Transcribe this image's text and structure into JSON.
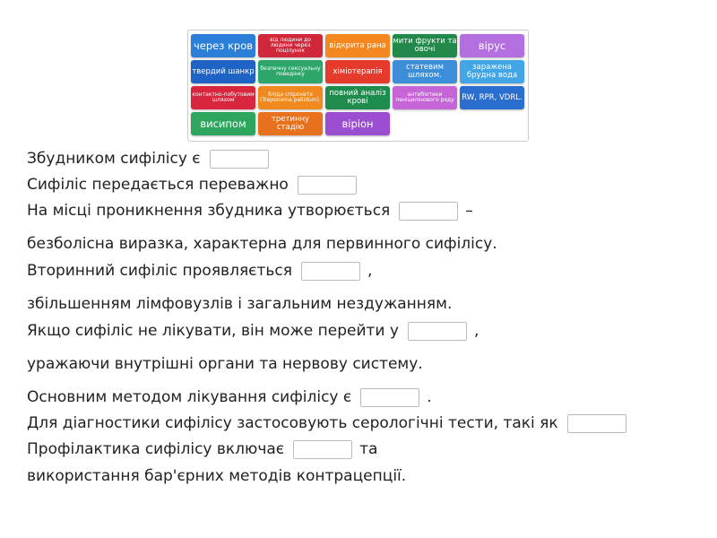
{
  "tiles": [
    {
      "label": "через кров",
      "color": "#2b7fd8",
      "size": "l"
    },
    {
      "label": "від людини до людини через поцілунок",
      "color": "#d0283a",
      "size": "s"
    },
    {
      "label": "відкрита рана",
      "color": "#f5871f",
      "size": "m"
    },
    {
      "label": "мити фрукти та овочі",
      "color": "#21894a",
      "size": "m"
    },
    {
      "label": "вірус",
      "color": "#b36ee0",
      "size": "l"
    },
    {
      "label": "твердий шанкр",
      "color": "#1f63c5",
      "size": "m"
    },
    {
      "label": "безпечну сексуальну поведінку",
      "color": "#2ea56b",
      "size": "s"
    },
    {
      "label": "хіміотерапія",
      "color": "#e53b2c",
      "size": "m"
    },
    {
      "label": "статевим шляхом.",
      "color": "#3d8ed8",
      "size": "m"
    },
    {
      "label": "заражена брудна вода",
      "color": "#42a5e5",
      "size": "m"
    },
    {
      "label": "контактно-побутовим шляхом",
      "color": "#d7263d",
      "size": "s"
    },
    {
      "label": "бліда спірохета (Treponema pallidum).",
      "color": "#f08a1e",
      "size": "s"
    },
    {
      "label": "повний аналіз крові",
      "color": "#1e8c4d",
      "size": "m"
    },
    {
      "label": "антибіотики пеніцилінового ряду",
      "color": "#c665d8",
      "size": "s"
    },
    {
      "label": "RW, RPR, VDRL.",
      "color": "#2a6fcf",
      "size": "m"
    },
    {
      "label": "висипом",
      "color": "#2fa65e",
      "size": "l"
    },
    {
      "label": "третинну стадію",
      "color": "#e8711e",
      "size": "m"
    },
    {
      "label": "віріон",
      "color": "#9b4fd0",
      "size": "l"
    }
  ],
  "lines": [
    {
      "text": "Збудником сифілісу є",
      "blank": true
    },
    {
      "text": "Сифіліс передається переважно",
      "blank": true
    },
    {
      "text": "На місці проникнення збудника утворюється",
      "blank": true,
      "after": "–"
    },
    {
      "text": "безболісна виразка, характерна для первинного сифілісу."
    },
    {
      "text": "Вторинний сифіліс проявляється",
      "blank": true,
      "after": ","
    },
    {
      "text": "збільшенням лімфовузлів і загальним нездужанням."
    },
    {
      "text": "Якщо сифіліс не лікувати, він може перейти у",
      "blank": true,
      "after": ","
    },
    {
      "text": "уражаючи внутрішні органи та нервову систему."
    },
    {
      "text": "Основним методом лікування сифілісу є",
      "blank": true,
      "after": "."
    },
    {
      "text": "Для діагностики сифілісу застосовують серологічні тести, такі як",
      "blank": true
    },
    {
      "text": "Профілактика сифілісу включає",
      "blank": true,
      "after": "та"
    },
    {
      "text": "використання бар'єрних методів контрацепції."
    }
  ]
}
